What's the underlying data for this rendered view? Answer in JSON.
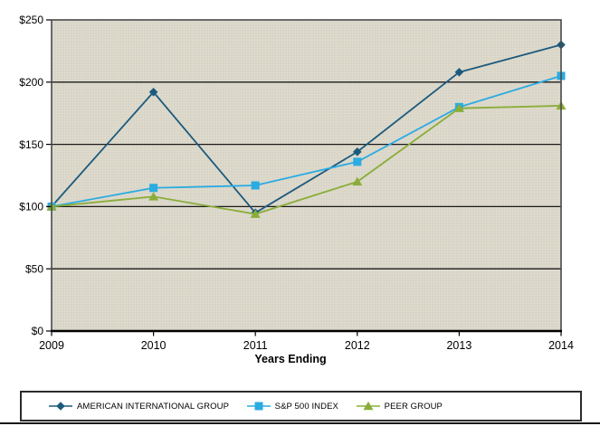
{
  "chart_data": {
    "type": "line",
    "title": "",
    "xlabel": "Years Ending",
    "ylabel": "",
    "categories": [
      "2009",
      "2010",
      "2011",
      "2012",
      "2013",
      "2014"
    ],
    "ylim": [
      0,
      250
    ],
    "ytick_values": [
      0,
      50,
      100,
      150,
      200,
      250
    ],
    "ytick_labels": [
      "$0",
      "$50",
      "$100",
      "$150",
      "$200",
      "$250"
    ],
    "grid": true,
    "legend_position": "bottom",
    "plot_bg_color": "#dcd8cb",
    "series": [
      {
        "name": "AMERICAN INTERNATIONAL GROUP",
        "marker": "diamond",
        "color": "#1c5a7d",
        "values": [
          100,
          192,
          95,
          144,
          208,
          230
        ]
      },
      {
        "name": "S&P 500 INDEX",
        "marker": "square",
        "color": "#2aabe2",
        "values": [
          100,
          115,
          117,
          136,
          180,
          205
        ]
      },
      {
        "name": "PEER GROUP",
        "marker": "triangle",
        "color": "#8aad3a",
        "values": [
          100,
          108,
          94,
          120,
          179,
          181
        ]
      }
    ]
  }
}
